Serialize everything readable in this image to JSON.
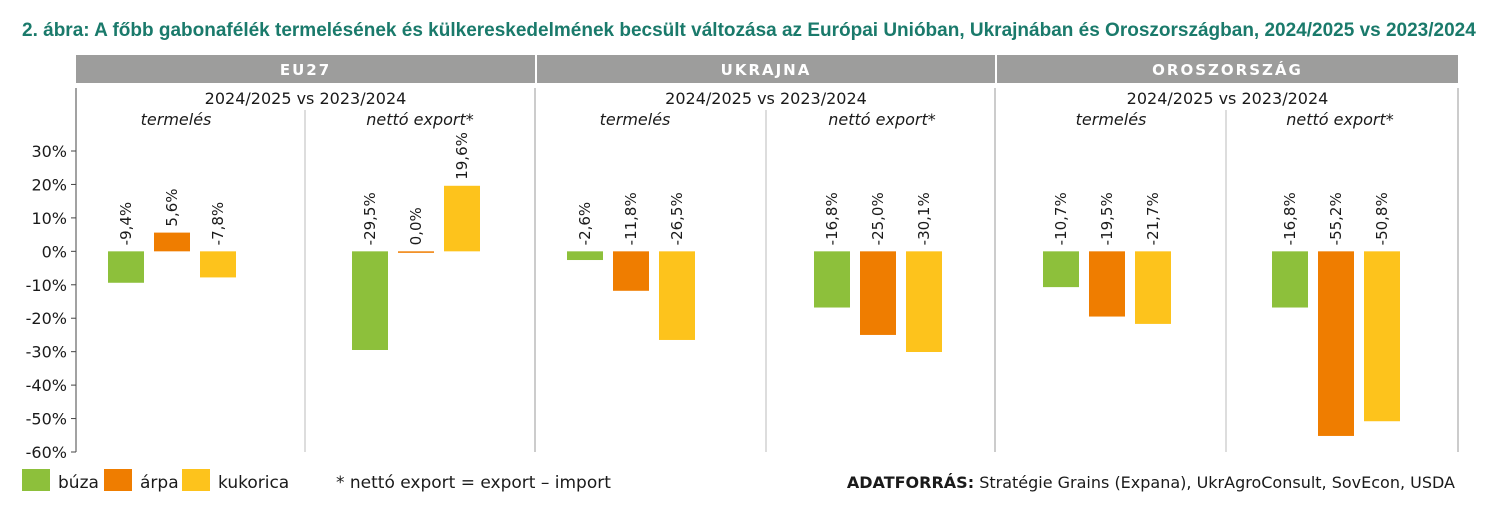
{
  "title": "2. ábra: A főbb gabonafélék termelésének és külkereskedelmének becsült változása az Európai Unióban, Ukrajnában és Oroszországban, 2024/2025 vs 2023/2024",
  "colors": {
    "buza": "#8dc03b",
    "arpa": "#ef7d00",
    "kukorica": "#fdc31c",
    "header": "#9d9d9c",
    "title": "#1a7a6b"
  },
  "legend": {
    "items": [
      {
        "label": "búza",
        "color": "#8dc03b"
      },
      {
        "label": "árpa",
        "color": "#ef7d00"
      },
      {
        "label": "kukorica",
        "color": "#fdc31c"
      }
    ],
    "footnote": "* nettó export = export – import"
  },
  "source": {
    "label": "ADATFORRÁS:",
    "text": "Stratégie Grains (Expana), UkrAgroConsult, SovEcon, USDA"
  },
  "chart_data": {
    "type": "bar",
    "ylim": [
      -60,
      30
    ],
    "yticks": [
      "30%",
      "20%",
      "10%",
      "0%",
      "-10%",
      "-20%",
      "-30%",
      "-40%",
      "-50%",
      "-60%"
    ],
    "period": "2024/2025 vs 2023/2024",
    "series_names": [
      "búza",
      "árpa",
      "kukorica"
    ],
    "panels": [
      {
        "region": "EU27",
        "groups": [
          {
            "label": "termelés",
            "values": [
              -9.4,
              5.6,
              -7.8
            ],
            "labels": [
              "-9,4%",
              "5,6%",
              "-7,8%"
            ]
          },
          {
            "label": "nettó export*",
            "values": [
              -29.5,
              0.0,
              19.6
            ],
            "labels": [
              "-29,5%",
              "0,0%",
              "19,6%"
            ]
          }
        ]
      },
      {
        "region": "UKRAJNA",
        "groups": [
          {
            "label": "termelés",
            "values": [
              -2.6,
              -11.8,
              -26.5
            ],
            "labels": [
              "-2,6%",
              "-11,8%",
              "-26,5%"
            ]
          },
          {
            "label": "nettó export*",
            "values": [
              -16.8,
              -25.0,
              -30.1
            ],
            "labels": [
              "-16,8%",
              "-25,0%",
              "-30,1%"
            ]
          }
        ]
      },
      {
        "region": "OROSZORSZÁG",
        "groups": [
          {
            "label": "termelés",
            "values": [
              -10.7,
              -19.5,
              -21.7
            ],
            "labels": [
              "-10,7%",
              "-19,5%",
              "-21,7%"
            ]
          },
          {
            "label": "nettó export*",
            "values": [
              -16.8,
              -55.2,
              -50.8
            ],
            "labels": [
              "-16,8%",
              "-55,2%",
              "-50,8%"
            ]
          }
        ]
      }
    ]
  }
}
